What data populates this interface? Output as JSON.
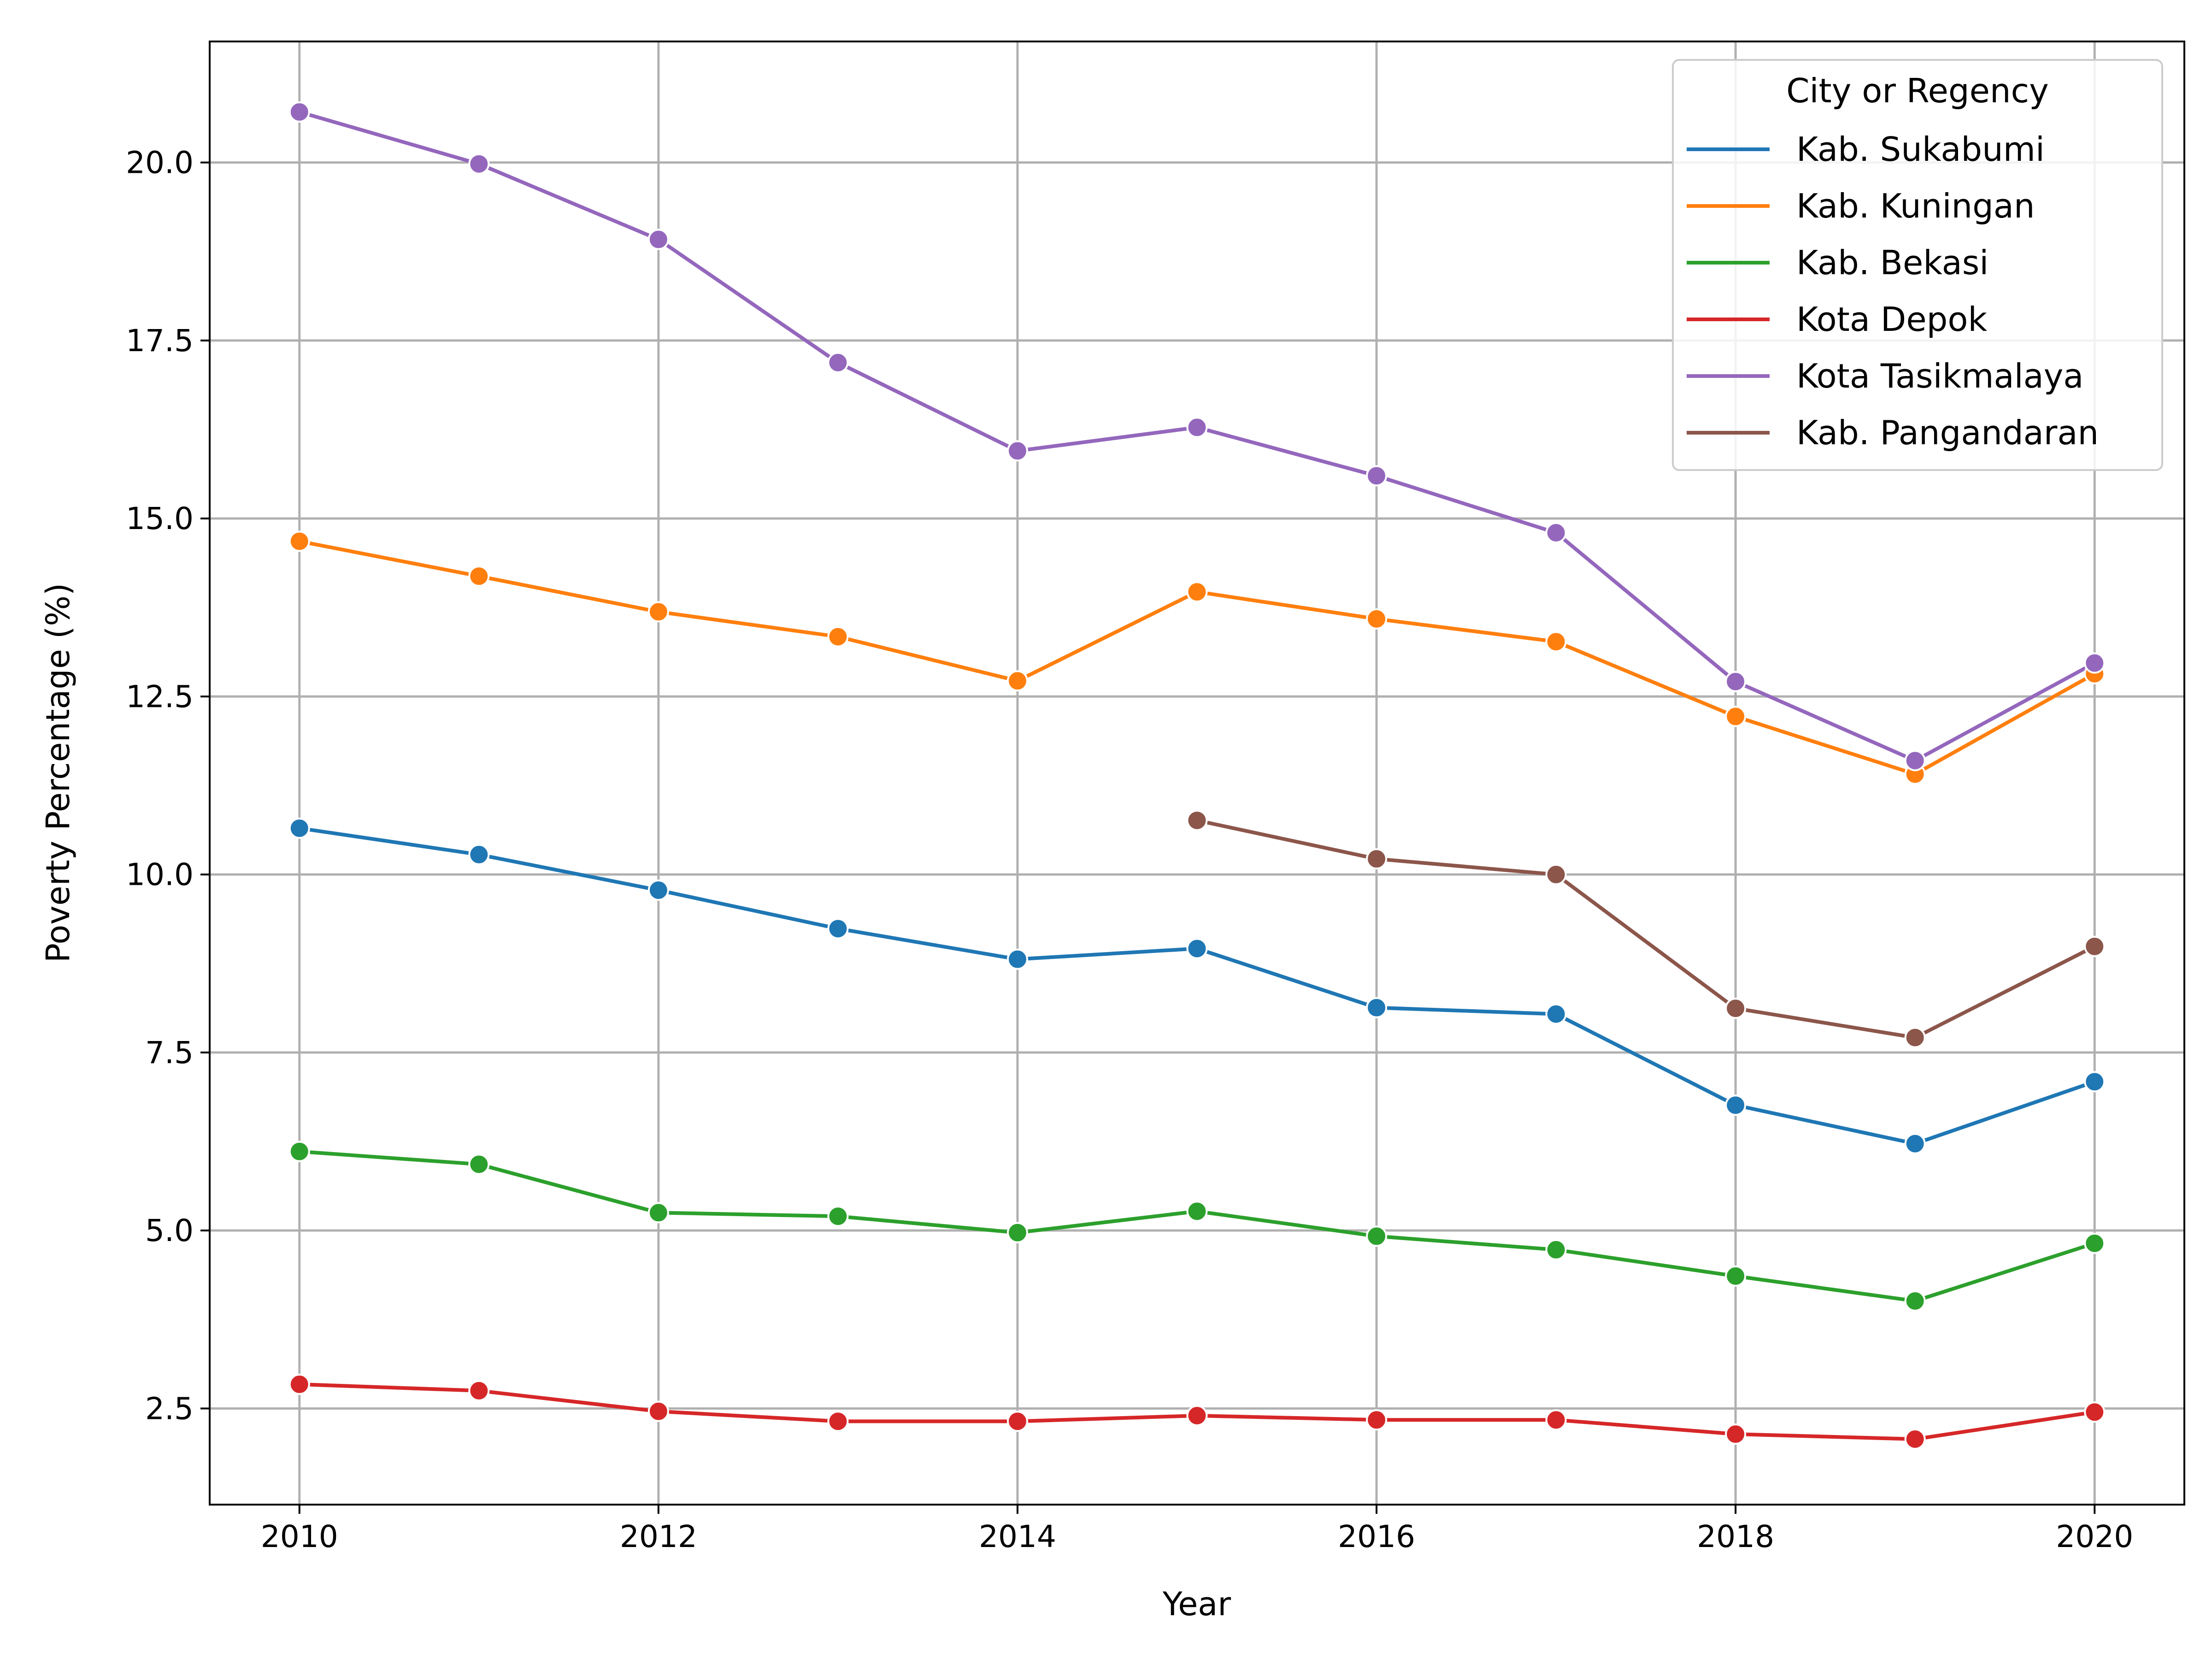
{
  "chart_data": {
    "type": "line",
    "title": "",
    "xlabel": "Year",
    "ylabel": "Poverty Percentage (%)",
    "xlim": [
      2009.5,
      2020.5
    ],
    "ylim": [
      1.15,
      21.7
    ],
    "xticks": [
      2010,
      2012,
      2014,
      2016,
      2018,
      2020
    ],
    "xtick_labels": [
      "2010",
      "2012",
      "2014",
      "2016",
      "2018",
      "2020"
    ],
    "yticks": [
      2.5,
      5.0,
      7.5,
      10.0,
      12.5,
      15.0,
      17.5,
      20.0
    ],
    "ytick_labels": [
      "2.5",
      "5.0",
      "7.5",
      "10.0",
      "12.5",
      "15.0",
      "17.5",
      "20.0"
    ],
    "grid": true,
    "legend": {
      "title": "City or Regency",
      "placement": "top-right"
    },
    "x": [
      2010,
      2011,
      2012,
      2013,
      2014,
      2015,
      2016,
      2017,
      2018,
      2019,
      2020
    ],
    "series": [
      {
        "name": "Kab. Sukabumi",
        "color": "#1f77b4",
        "values": [
          10.65,
          10.28,
          9.78,
          9.24,
          8.81,
          8.96,
          8.13,
          8.04,
          6.76,
          6.22,
          7.09
        ]
      },
      {
        "name": "Kab. Kuningan",
        "color": "#ff7f0e",
        "values": [
          14.68,
          14.19,
          13.69,
          13.34,
          12.72,
          13.97,
          13.59,
          13.27,
          12.22,
          11.41,
          12.82
        ]
      },
      {
        "name": "Kab. Bekasi",
        "color": "#2ca02c",
        "values": [
          6.11,
          5.93,
          5.25,
          5.2,
          4.97,
          5.27,
          4.92,
          4.73,
          4.36,
          4.01,
          4.82
        ]
      },
      {
        "name": "Kota Depok",
        "color": "#d62728",
        "values": [
          2.84,
          2.75,
          2.46,
          2.32,
          2.32,
          2.4,
          2.34,
          2.34,
          2.14,
          2.07,
          2.45
        ]
      },
      {
        "name": "Kota Tasikmalaya",
        "color": "#9467bd",
        "values": [
          20.71,
          19.98,
          18.92,
          17.19,
          15.95,
          16.28,
          15.6,
          14.8,
          12.71,
          11.6,
          12.97
        ]
      },
      {
        "name": "Kab. Pangandaran",
        "color": "#8c564b",
        "values": [
          null,
          null,
          null,
          null,
          null,
          10.76,
          10.22,
          10.0,
          8.12,
          7.71,
          8.99
        ]
      }
    ]
  }
}
